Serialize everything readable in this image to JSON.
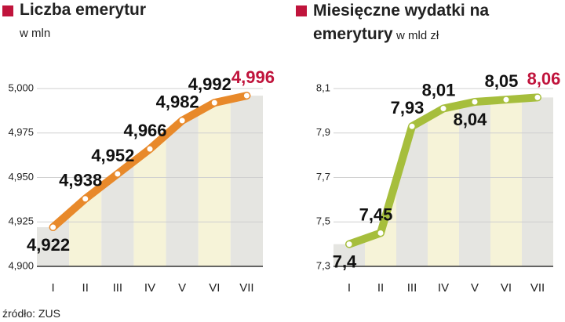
{
  "chart_data": [
    {
      "type": "line",
      "title": "Liczba emerytur",
      "subtitle": "w mln",
      "categories": [
        "I",
        "II",
        "III",
        "IV",
        "V",
        "VI",
        "VII"
      ],
      "values": [
        4.922,
        4.938,
        4.952,
        4.966,
        4.982,
        4.992,
        4.996
      ],
      "value_labels": [
        "4,922",
        "4,938",
        "4,952",
        "4,966",
        "4,982",
        "4,992",
        "4,996"
      ],
      "color": "#e8892a",
      "last_label_color": "#c0143c",
      "ylim": [
        4.9,
        5.0
      ],
      "yticks": [
        {
          "value": 4.9,
          "label": "4,900"
        },
        {
          "value": 4.925,
          "label": "4,925"
        },
        {
          "value": 4.95,
          "label": "4,950"
        },
        {
          "value": 4.975,
          "label": "4,975"
        },
        {
          "value": 5.0,
          "label": "5,000"
        }
      ]
    },
    {
      "type": "line",
      "title": "Miesięczne wydatki na emerytury",
      "subtitle": "w mld zł",
      "categories": [
        "I",
        "II",
        "III",
        "IV",
        "V",
        "VI",
        "VII"
      ],
      "values": [
        7.4,
        7.45,
        7.93,
        8.01,
        8.04,
        8.05,
        8.06
      ],
      "value_labels": [
        "7,4",
        "7,45",
        "7,93",
        "8,01",
        "8,04",
        "8,05",
        "8,06"
      ],
      "color": "#a6be3c",
      "last_label_color": "#c0143c",
      "ylim": [
        7.3,
        8.1
      ],
      "yticks": [
        {
          "value": 7.3,
          "label": "7,3"
        },
        {
          "value": 7.5,
          "label": "7,5"
        },
        {
          "value": 7.7,
          "label": "7,7"
        },
        {
          "value": 7.9,
          "label": "7,9"
        },
        {
          "value": 8.1,
          "label": "8,1"
        }
      ]
    }
  ],
  "source": "źródło: ZUS"
}
